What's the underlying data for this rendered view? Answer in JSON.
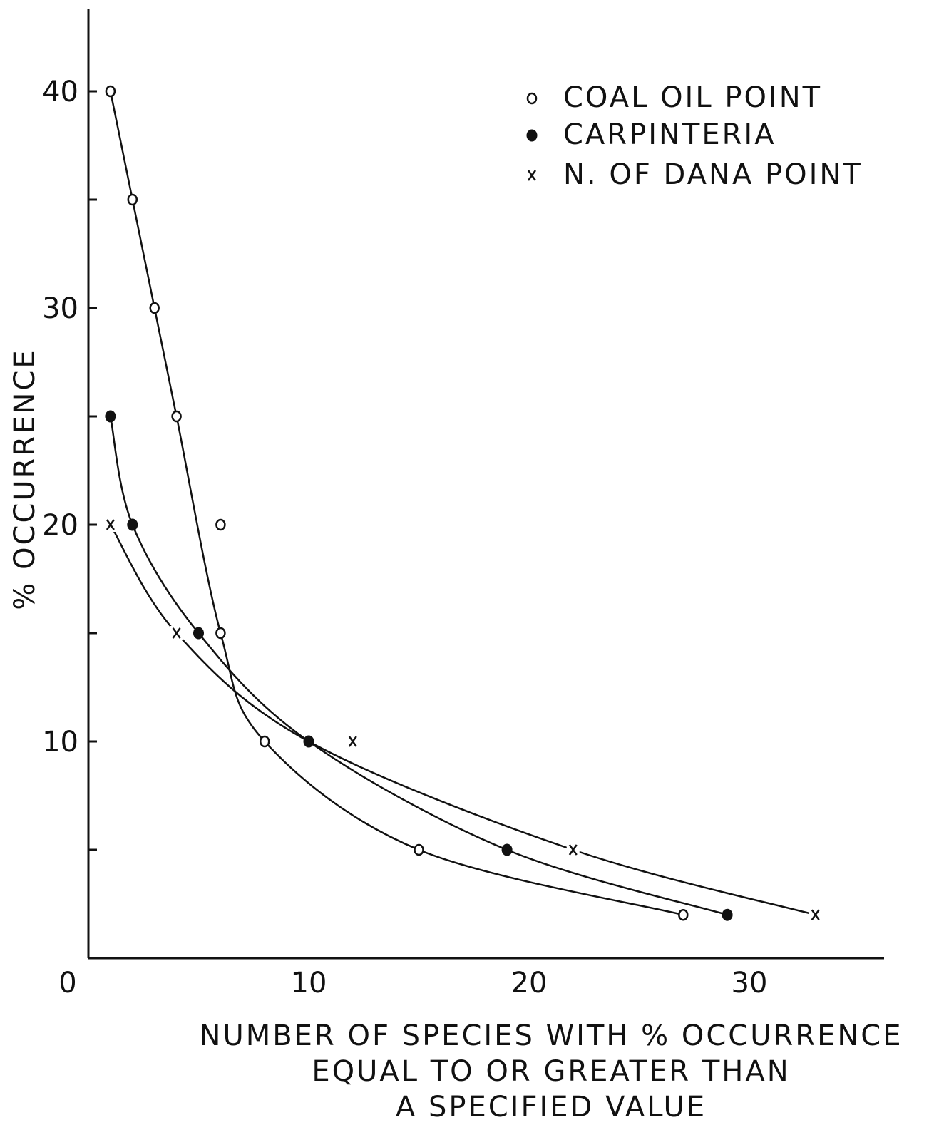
{
  "chart_data": {
    "type": "scatter",
    "xlabel": [
      "NUMBER OF SPECIES WITH % OCCURRENCE",
      "EQUAL TO OR GREATER THAN",
      "A SPECIFIED VALUE"
    ],
    "ylabel": "% OCCURRENCE",
    "xlim": [
      0,
      36
    ],
    "ylim": [
      0,
      44
    ],
    "x_ticks": [
      0,
      10,
      20,
      30
    ],
    "y_ticks": [
      10,
      20,
      30,
      40
    ],
    "y_minor_ticks": [
      5,
      15,
      25,
      35
    ],
    "legend_position": "top-right",
    "series": [
      {
        "name": "COAL OIL POINT",
        "marker": "open-circle",
        "points": [
          [
            1,
            40
          ],
          [
            2,
            35
          ],
          [
            3,
            30
          ],
          [
            4,
            25
          ],
          [
            6,
            20
          ],
          [
            6,
            15
          ],
          [
            8,
            10
          ],
          [
            15,
            5
          ],
          [
            27,
            2
          ]
        ],
        "curve": [
          [
            1,
            40
          ],
          [
            2,
            35
          ],
          [
            3,
            30
          ],
          [
            4,
            25
          ],
          [
            6,
            15
          ],
          [
            8,
            10
          ],
          [
            15,
            5
          ],
          [
            27,
            2
          ]
        ]
      },
      {
        "name": "CARPINTERIA",
        "marker": "filled-circle",
        "points": [
          [
            1,
            25
          ],
          [
            2,
            20
          ],
          [
            5,
            15
          ],
          [
            10,
            10
          ],
          [
            19,
            5
          ],
          [
            29,
            2
          ]
        ],
        "curve": [
          [
            1,
            25
          ],
          [
            2,
            20
          ],
          [
            5,
            15
          ],
          [
            10,
            10
          ],
          [
            19,
            5
          ],
          [
            29,
            2
          ]
        ]
      },
      {
        "name": "N. OF DANA POINT",
        "marker": "x",
        "points": [
          [
            1,
            20
          ],
          [
            4,
            15
          ],
          [
            12,
            10
          ],
          [
            22,
            5
          ],
          [
            33,
            2
          ]
        ],
        "curve": [
          [
            1,
            20
          ],
          [
            4,
            15
          ],
          [
            10,
            10
          ],
          [
            22,
            5
          ],
          [
            33,
            2
          ]
        ]
      }
    ]
  }
}
